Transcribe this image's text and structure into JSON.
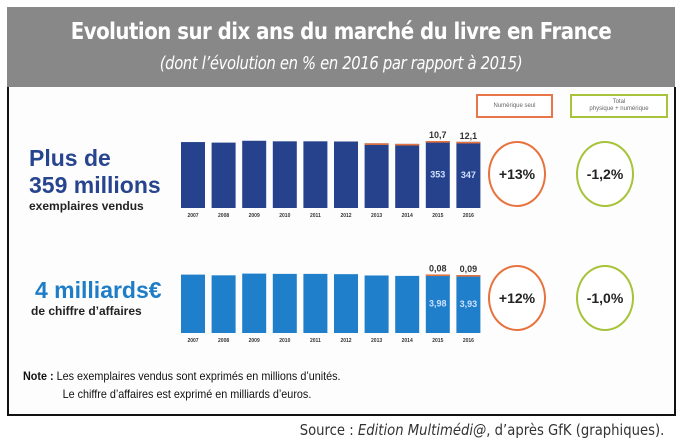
{
  "header": {
    "title": "Evolution sur dix ans du marché du livre en France",
    "subtitle": "(dont l’évolution en % en 2016 par rapport à 2015)"
  },
  "legend": {
    "digital_only": "Numérique seul",
    "total_line1": "Total",
    "total_line2": "physique + numérique"
  },
  "books": {
    "headline_1": "Plus de",
    "headline_2": "359 millions",
    "caption": "exemplaires vendus",
    "digital_change": "+13%",
    "total_change": "-1,2%"
  },
  "revenue": {
    "headline": "4 milliards€",
    "caption": "de chiffre d’affaires",
    "digital_change": "+12%",
    "total_change": "-1,0%"
  },
  "note": {
    "label": "Note :",
    "line1": "Les exemplaires vendus sont exprimés en millions d’unités.",
    "line2": "Le chiffre d’affaires est exprimé en milliards d’euros."
  },
  "source": {
    "prefix": "Source : ",
    "publication": "Edition Multimédi@",
    "suffix": ", d’après GfK (graphiques)."
  },
  "colors": {
    "books_bar": "#27428c",
    "revenue_bar": "#1f7fca",
    "digital": "#e8723e",
    "total": "#a6c33a"
  },
  "chart_data": [
    {
      "type": "bar",
      "title": "Exemplaires vendus (millions)",
      "categories": [
        "2007",
        "2008",
        "2009",
        "2010",
        "2011",
        "2012",
        "2013",
        "2014",
        "2015",
        "2016"
      ],
      "series": [
        {
          "name": "Physique",
          "values": [
            358,
            355,
            365,
            362,
            362,
            361,
            350,
            347,
            353,
            347
          ],
          "labels": [
            "",
            "",
            "",
            "",
            "",
            "",
            "",
            "",
            "353",
            "347"
          ]
        },
        {
          "name": "Numérique seul",
          "values": [
            0,
            0,
            0,
            0,
            0,
            0,
            1,
            1,
            10.7,
            12.1
          ],
          "labels": [
            "",
            "",
            "",
            "",
            "",
            "",
            "",
            "",
            "10,7",
            "12,1"
          ]
        }
      ],
      "ylim": [
        0,
        380
      ],
      "legend": "top-right"
    },
    {
      "type": "bar",
      "title": "Chiffre d'affaires (milliards d'euros)",
      "categories": [
        "2007",
        "2008",
        "2009",
        "2010",
        "2011",
        "2012",
        "2013",
        "2014",
        "2015",
        "2016"
      ],
      "series": [
        {
          "name": "Physique",
          "values": [
            4.05,
            4.0,
            4.12,
            4.1,
            4.1,
            4.08,
            3.99,
            3.96,
            3.98,
            3.93
          ],
          "labels": [
            "",
            "",
            "",
            "",
            "",
            "",
            "",
            "",
            "3,98",
            "3,93"
          ]
        },
        {
          "name": "Numérique seul",
          "values": [
            0,
            0,
            0,
            0,
            0,
            0,
            0,
            0,
            0.08,
            0.09
          ],
          "labels": [
            "",
            "",
            "",
            "",
            "",
            "",
            "",
            "",
            "0,08",
            "0,09"
          ]
        }
      ],
      "ylim": [
        0,
        4.3
      ],
      "legend": "top-right"
    }
  ]
}
